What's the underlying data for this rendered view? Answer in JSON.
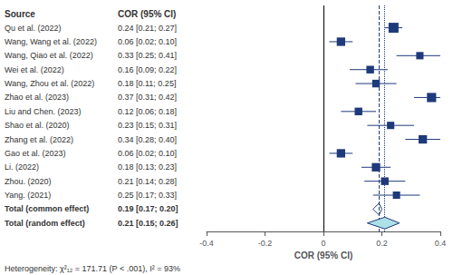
{
  "chart_data": {
    "type": "forest",
    "xlabel": "COR (95% CI)",
    "column_headers": [
      "Source",
      "COR (95% CI)"
    ],
    "categories": [
      "Qu et al. (2022)",
      "Wang, Wang et al. (2022)",
      "Wang, Qiao et al. (2022)",
      "Wei et al. (2022)",
      "Wang, Zhou et al. (2022)",
      "Zhao et al. (2023)",
      "Liu and Chen. (2023)",
      "Shao et al. (2020)",
      "Zhang et al. (2022)",
      "Gao et al. (2023)",
      "Li. (2022)",
      "Zhou. (2020)",
      "Yang. (2021)"
    ],
    "values": [
      0.24,
      0.06,
      0.33,
      0.16,
      0.18,
      0.37,
      0.12,
      0.23,
      0.34,
      0.06,
      0.18,
      0.21,
      0.25
    ],
    "ci_lo": [
      0.21,
      0.02,
      0.25,
      0.09,
      0.11,
      0.31,
      0.06,
      0.15,
      0.28,
      0.02,
      0.13,
      0.14,
      0.17
    ],
    "ci_hi": [
      0.27,
      0.1,
      0.41,
      0.22,
      0.25,
      0.42,
      0.18,
      0.31,
      0.4,
      0.1,
      0.23,
      0.28,
      0.33
    ],
    "weights": [
      3.5,
      2.5,
      1.8,
      2.0,
      2.0,
      3.0,
      2.0,
      1.8,
      2.5,
      2.5,
      2.5,
      2.0,
      1.8
    ],
    "value_labels": [
      "0.24 [0.21; 0.27]",
      "0.06 [0.02; 0.10]",
      "0.33 [0.25; 0.41]",
      "0.16 [0.09; 0.22]",
      "0.18 [0.11; 0.25]",
      "0.37 [0.31; 0.42]",
      "0.12 [0.06; 0.18]",
      "0.23 [0.15; 0.31]",
      "0.34 [0.28; 0.40]",
      "0.06 [0.02; 0.10]",
      "0.18 [0.13; 0.23]",
      "0.21 [0.14; 0.28]",
      "0.25 [0.17; 0.33]"
    ],
    "summaries": [
      {
        "name": "Total (common effect)",
        "value": 0.19,
        "ci_lo": 0.17,
        "ci_hi": 0.2,
        "value_label": "0.19 [0.17; 0.20]",
        "marker": "hollow diamond"
      },
      {
        "name": "Total (random effect)",
        "value": 0.21,
        "ci_lo": 0.15,
        "ci_hi": 0.26,
        "value_label": "0.21 [0.15; 0.26]",
        "marker": "diamond",
        "color": "#aee0e8"
      }
    ],
    "reference_lines": [
      {
        "value": 0,
        "color": "#000000",
        "line_style": "solid"
      },
      {
        "value": 0.19,
        "color": "#1f3a7a",
        "line_style": "dashed"
      },
      {
        "value": 0.21,
        "color": "#1f3a7a",
        "line_style": "dotted"
      }
    ],
    "color": "#1f3a7a",
    "xlim": [
      -0.4,
      0.4
    ],
    "xticks": [
      -0.4,
      -0.2,
      0,
      0.2,
      0.4
    ],
    "grid": false,
    "annotations": [
      "Heterogeneity: χ²₁₂ = 171.71 (P < .001), I² = 93%"
    ]
  }
}
